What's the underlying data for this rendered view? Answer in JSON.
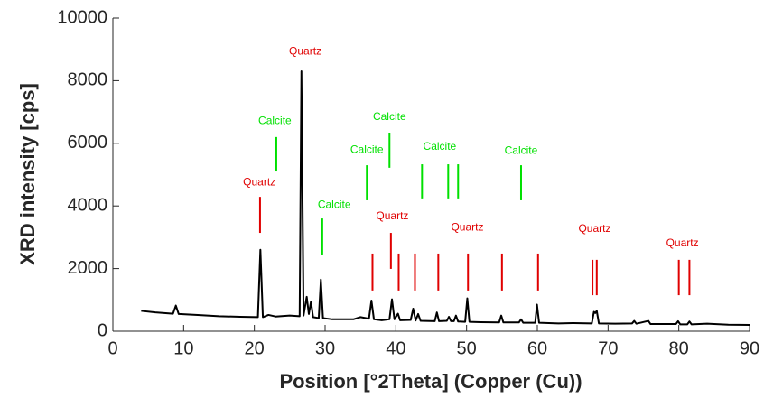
{
  "chart_data": {
    "type": "line",
    "xlabel": "Position [°2Theta] (Copper (Cu))",
    "ylabel": "XRD intensity [cps]",
    "xlim": [
      0,
      90
    ],
    "xticks": [
      0,
      10,
      20,
      30,
      40,
      50,
      60,
      70,
      80,
      90
    ],
    "ylim": [
      0,
      10000
    ],
    "yticks": [
      0,
      2000,
      4000,
      6000,
      8000,
      10000
    ],
    "grid": false,
    "series": [
      {
        "color": "#000000",
        "x": [
          4,
          6,
          8.5,
          8.9,
          9.3,
          12,
          15,
          18,
          20.5,
          20.85,
          21.2,
          22,
          23,
          25,
          26.4,
          26.65,
          26.95,
          27.4,
          27.7,
          28,
          28.3,
          29.1,
          29.4,
          29.7,
          31,
          34,
          35,
          36.2,
          36.55,
          36.9,
          38,
          39.1,
          39.45,
          39.8,
          40.3,
          40.6,
          42.1,
          42.45,
          42.8,
          43.15,
          43.5,
          45.5,
          45.8,
          46.1,
          47.2,
          47.5,
          47.8,
          48.2,
          48.5,
          48.8,
          49.8,
          50.1,
          50.4,
          52,
          54.6,
          54.9,
          55.2,
          57.4,
          57.7,
          58,
          59.7,
          59.95,
          60.25,
          63,
          65,
          67.7,
          68.0,
          68.2,
          68.4,
          68.7,
          71,
          73.4,
          73.7,
          74,
          75.7,
          76,
          79.6,
          79.9,
          80.2,
          81.2,
          81.5,
          81.8,
          84,
          87,
          90
        ],
        "values": [
          650,
          600,
          560,
          820,
          550,
          520,
          480,
          460,
          450,
          2600,
          450,
          520,
          470,
          500,
          480,
          8300,
          500,
          1100,
          550,
          950,
          450,
          420,
          1650,
          420,
          380,
          380,
          450,
          400,
          980,
          380,
          350,
          380,
          1020,
          380,
          560,
          350,
          360,
          720,
          340,
          550,
          330,
          320,
          600,
          320,
          330,
          460,
          320,
          320,
          500,
          310,
          300,
          1050,
          300,
          290,
          280,
          500,
          280,
          280,
          380,
          270,
          270,
          850,
          270,
          250,
          260,
          250,
          620,
          580,
          650,
          250,
          240,
          250,
          330,
          240,
          330,
          230,
          230,
          320,
          220,
          220,
          310,
          220,
          240,
          210,
          200
        ]
      }
    ],
    "segments": [
      {
        "x": 20.8,
        "y": [
          3140,
          4290
        ],
        "color": "#e00000"
      },
      {
        "x": 36.7,
        "y": [
          1300,
          2480
        ],
        "color": "#e00000"
      },
      {
        "x": 39.3,
        "y": [
          1990,
          3140
        ],
        "color": "#e00000"
      },
      {
        "x": 40.4,
        "y": [
          1300,
          2480
        ],
        "color": "#e00000"
      },
      {
        "x": 42.7,
        "y": [
          1300,
          2480
        ],
        "color": "#e00000"
      },
      {
        "x": 46,
        "y": [
          1300,
          2480
        ],
        "color": "#e00000"
      },
      {
        "x": 50.2,
        "y": [
          1300,
          2480
        ],
        "color": "#e00000"
      },
      {
        "x": 55,
        "y": [
          1300,
          2480
        ],
        "color": "#e00000"
      },
      {
        "x": 60.1,
        "y": [
          1300,
          2480
        ],
        "color": "#e00000"
      },
      {
        "x": 67.8,
        "y": [
          1150,
          2280
        ],
        "color": "#e00000"
      },
      {
        "x": 68.4,
        "y": [
          1150,
          2280
        ],
        "color": "#e00000"
      },
      {
        "x": 80,
        "y": [
          1150,
          2280
        ],
        "color": "#e00000"
      },
      {
        "x": 81.5,
        "y": [
          1150,
          2280
        ],
        "color": "#e00000"
      },
      {
        "x": 23.1,
        "y": [
          5100,
          6200
        ],
        "color": "#00e000"
      },
      {
        "x": 29.6,
        "y": [
          2450,
          3600
        ],
        "color": "#00e000"
      },
      {
        "x": 35.9,
        "y": [
          4180,
          5300
        ],
        "color": "#00e000"
      },
      {
        "x": 39.1,
        "y": [
          5220,
          6340
        ],
        "color": "#00e000"
      },
      {
        "x": 43.7,
        "y": [
          4240,
          5330
        ],
        "color": "#00e000"
      },
      {
        "x": 47.4,
        "y": [
          4240,
          5330
        ],
        "color": "#00e000"
      },
      {
        "x": 48.8,
        "y": [
          4240,
          5330
        ],
        "color": "#00e000"
      },
      {
        "x": 57.7,
        "y": [
          4180,
          5300
        ],
        "color": "#00e000"
      }
    ],
    "annotations": [
      {
        "text": "Quartz",
        "x": 27.2,
        "y": 8930,
        "color": "#e00000"
      },
      {
        "text": "Calcite",
        "x": 22.9,
        "y": 6710,
        "color": "#00e000"
      },
      {
        "text": "Quartz",
        "x": 20.7,
        "y": 4750,
        "color": "#e00000"
      },
      {
        "text": "Calcite",
        "x": 31.3,
        "y": 4030,
        "color": "#00e000"
      },
      {
        "text": "Calcite",
        "x": 35.9,
        "y": 5790,
        "color": "#00e000"
      },
      {
        "text": "Calcite",
        "x": 39.1,
        "y": 6830,
        "color": "#00e000"
      },
      {
        "text": "Quartz",
        "x": 39.5,
        "y": 3660,
        "color": "#e00000"
      },
      {
        "text": "Calcite",
        "x": 46.2,
        "y": 5880,
        "color": "#00e000"
      },
      {
        "text": "Quartz",
        "x": 50.1,
        "y": 3310,
        "color": "#e00000"
      },
      {
        "text": "Calcite",
        "x": 57.7,
        "y": 5760,
        "color": "#00e000"
      },
      {
        "text": "Quartz",
        "x": 68.1,
        "y": 3260,
        "color": "#e00000"
      },
      {
        "text": "Quartz",
        "x": 80.5,
        "y": 2800,
        "color": "#e00000"
      }
    ]
  }
}
